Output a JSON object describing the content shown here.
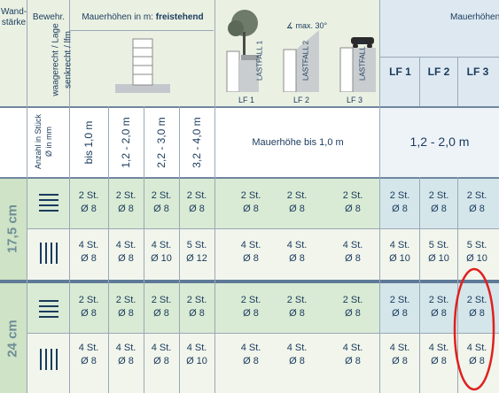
{
  "header": {
    "wall_thickness": "Wand-stärke",
    "reinforcement": "Bewehr.",
    "wall_heights_label": "Mauerhöhen in m:",
    "freestanding": "freistehend",
    "wall_heights_right": "Mauerhöhen",
    "rotated_left": "waagerecht / Lage",
    "rotated_left2": "senkrecht / lfm",
    "count_label": "Anzahl in Stück",
    "diam_label": "Ø in mm",
    "max_angle": "max. 30°",
    "lastfall": [
      "LASTFALL 1",
      "LASTFALL 2",
      "LASTFALL 3"
    ],
    "lf_labels": [
      "LF 1",
      "LF 2",
      "LF 3"
    ],
    "lf_bold": [
      "LF 1",
      "LF 2",
      "LF 3"
    ],
    "height_ranges": [
      "bis 1,0 m",
      "1,2 - 2,0 m",
      "2,2 - 3,0 m",
      "3,2 - 4,0 m"
    ],
    "mauerhoehe_bis": "Mauerhöhe bis 1,0 m",
    "range_right": "1,2 - 2,0 m"
  },
  "rows": [
    {
      "thickness": "17,5 cm",
      "horizontal": [
        [
          "2 St.",
          "Ø 8"
        ],
        [
          "2 St.",
          "Ø 8"
        ],
        [
          "2 St.",
          "Ø 8"
        ],
        [
          "2 St.",
          "Ø 8"
        ],
        [
          "2 St.",
          "Ø 8"
        ],
        [
          "2 St.",
          "Ø 8"
        ],
        [
          "2 St.",
          "Ø 8"
        ],
        [
          "2 St.",
          "Ø 8"
        ],
        [
          "2 St.",
          "Ø 8"
        ],
        [
          "2 St.",
          "Ø 8"
        ]
      ],
      "vertical": [
        [
          "4 St.",
          "Ø 8"
        ],
        [
          "4 St.",
          "Ø 8"
        ],
        [
          "4 St.",
          "Ø 10"
        ],
        [
          "5 St.",
          "Ø 12"
        ],
        [
          "4 St.",
          "Ø 8"
        ],
        [
          "4 St.",
          "Ø 8"
        ],
        [
          "4 St.",
          "Ø 8"
        ],
        [
          "4 St.",
          "Ø 10"
        ],
        [
          "5 St.",
          "Ø 10"
        ],
        [
          "5 St.",
          "Ø 10"
        ]
      ]
    },
    {
      "thickness": "24 cm",
      "horizontal": [
        [
          "2 St.",
          "Ø 8"
        ],
        [
          "2 St.",
          "Ø 8"
        ],
        [
          "2 St.",
          "Ø 8"
        ],
        [
          "2 St.",
          "Ø 8"
        ],
        [
          "2 St.",
          "Ø 8"
        ],
        [
          "2 St.",
          "Ø 8"
        ],
        [
          "2 St.",
          "Ø 8"
        ],
        [
          "2 St.",
          "Ø 8"
        ],
        [
          "2 St.",
          "Ø 8"
        ],
        [
          "2 St.",
          "Ø 8"
        ]
      ],
      "vertical": [
        [
          "4 St.",
          "Ø 8"
        ],
        [
          "4 St.",
          "Ø 8"
        ],
        [
          "4 St.",
          "Ø 8"
        ],
        [
          "4 St.",
          "Ø 10"
        ],
        [
          "4 St.",
          "Ø 8"
        ],
        [
          "4 St.",
          "Ø 8"
        ],
        [
          "4 St.",
          "Ø 8"
        ],
        [
          "4 St.",
          "Ø 8"
        ],
        [
          "4 St.",
          "Ø 8"
        ],
        [
          "4 St.",
          "Ø 8"
        ]
      ]
    }
  ],
  "colors": {
    "green": "#d9ebd4",
    "light": "#f1f5ec",
    "blue": "#e3ecf4",
    "highlight_circle": "#e02020"
  }
}
